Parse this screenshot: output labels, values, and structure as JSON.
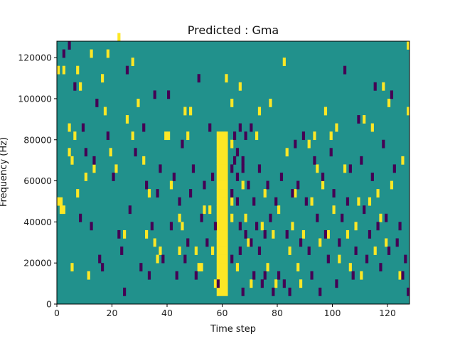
{
  "chart_data": {
    "type": "heatmap",
    "title": "Predicted : Gma",
    "xlabel": "Time step",
    "ylabel": "Frequency (Hz)",
    "xlim": [
      0,
      128
    ],
    "ylim": [
      0,
      128000
    ],
    "x_ticks": [
      0,
      20,
      40,
      60,
      80,
      100,
      120
    ],
    "x_tick_labels": [
      "0",
      "20",
      "40",
      "60",
      "80",
      "100",
      "120"
    ],
    "y_ticks": [
      0,
      20000,
      40000,
      60000,
      80000,
      100000,
      120000
    ],
    "y_tick_labels": [
      "0",
      "20000",
      "40000",
      "60000",
      "80000",
      "100000",
      "120000"
    ],
    "grid": false,
    "legend": "none",
    "colormap": "viridis",
    "value_levels": [
      -1,
      0,
      1
    ],
    "colors": {
      "low": "#440154",
      "mid": "#21918c",
      "high": "#fde725"
    },
    "background_value": 0,
    "cell_height_hz": 4000,
    "yellow_band": {
      "t_start": 58,
      "t_end": 62,
      "f_start": 4000,
      "f_end": 84000
    },
    "cells_high": [
      [
        0,
        48000
      ],
      [
        1,
        48000
      ],
      [
        1,
        44000
      ],
      [
        2,
        44000
      ],
      [
        0,
        112000
      ],
      [
        2,
        112000
      ],
      [
        4,
        84000
      ],
      [
        4,
        72000
      ],
      [
        5,
        68000
      ],
      [
        5,
        16000
      ],
      [
        6,
        80000
      ],
      [
        7,
        52000
      ],
      [
        7,
        112000
      ],
      [
        8,
        104000
      ],
      [
        10,
        60000
      ],
      [
        11,
        12000
      ],
      [
        12,
        120000
      ],
      [
        13,
        64000
      ],
      [
        16,
        108000
      ],
      [
        17,
        92000
      ],
      [
        18,
        120000
      ],
      [
        19,
        72000
      ],
      [
        21,
        64000
      ],
      [
        22,
        128000
      ],
      [
        24,
        32000
      ],
      [
        25,
        88000
      ],
      [
        27,
        80000
      ],
      [
        27,
        116000
      ],
      [
        29,
        96000
      ],
      [
        31,
        68000
      ],
      [
        32,
        32000
      ],
      [
        33,
        52000
      ],
      [
        35,
        28000
      ],
      [
        36,
        20000
      ],
      [
        37,
        24000
      ],
      [
        39,
        80000
      ],
      [
        40,
        80000
      ],
      [
        41,
        56000
      ],
      [
        44,
        24000
      ],
      [
        44,
        40000
      ],
      [
        45,
        36000
      ],
      [
        46,
        92000
      ],
      [
        47,
        80000
      ],
      [
        48,
        92000
      ],
      [
        50,
        24000
      ],
      [
        51,
        16000
      ],
      [
        52,
        16000
      ],
      [
        53,
        44000
      ],
      [
        55,
        44000
      ],
      [
        56,
        24000
      ],
      [
        57,
        8000
      ],
      [
        59,
        32000
      ],
      [
        59,
        48000
      ],
      [
        61,
        108000
      ],
      [
        63,
        96000
      ],
      [
        63,
        76000
      ],
      [
        63,
        48000
      ],
      [
        63,
        40000
      ],
      [
        65,
        16000
      ],
      [
        66,
        104000
      ],
      [
        67,
        56000
      ],
      [
        68,
        40000
      ],
      [
        69,
        28000
      ],
      [
        70,
        8000
      ],
      [
        72,
        80000
      ],
      [
        73,
        92000
      ],
      [
        74,
        36000
      ],
      [
        75,
        52000
      ],
      [
        76,
        16000
      ],
      [
        77,
        96000
      ],
      [
        78,
        32000
      ],
      [
        79,
        8000
      ],
      [
        80,
        44000
      ],
      [
        82,
        116000
      ],
      [
        83,
        72000
      ],
      [
        84,
        24000
      ],
      [
        85,
        36000
      ],
      [
        86,
        52000
      ],
      [
        87,
        16000
      ],
      [
        88,
        8000
      ],
      [
        89,
        32000
      ],
      [
        91,
        76000
      ],
      [
        92,
        48000
      ],
      [
        93,
        80000
      ],
      [
        94,
        64000
      ],
      [
        95,
        28000
      ],
      [
        96,
        56000
      ],
      [
        97,
        92000
      ],
      [
        98,
        32000
      ],
      [
        99,
        80000
      ],
      [
        100,
        44000
      ],
      [
        101,
        84000
      ],
      [
        102,
        20000
      ],
      [
        104,
        64000
      ],
      [
        105,
        32000
      ],
      [
        106,
        16000
      ],
      [
        108,
        36000
      ],
      [
        109,
        48000
      ],
      [
        110,
        12000
      ],
      [
        111,
        88000
      ],
      [
        113,
        48000
      ],
      [
        114,
        84000
      ],
      [
        115,
        24000
      ],
      [
        116,
        52000
      ],
      [
        117,
        40000
      ],
      [
        118,
        104000
      ],
      [
        119,
        28000
      ],
      [
        120,
        96000
      ],
      [
        121,
        56000
      ],
      [
        124,
        12000
      ],
      [
        125,
        68000
      ],
      [
        127,
        124000
      ],
      [
        127,
        92000
      ]
    ],
    "cells_low": [
      [
        2,
        120000
      ],
      [
        4,
        124000
      ],
      [
        6,
        104000
      ],
      [
        8,
        40000
      ],
      [
        9,
        84000
      ],
      [
        10,
        72000
      ],
      [
        12,
        36000
      ],
      [
        13,
        68000
      ],
      [
        14,
        96000
      ],
      [
        15,
        20000
      ],
      [
        16,
        16000
      ],
      [
        18,
        80000
      ],
      [
        20,
        60000
      ],
      [
        22,
        32000
      ],
      [
        23,
        24000
      ],
      [
        24,
        4000
      ],
      [
        25,
        112000
      ],
      [
        26,
        44000
      ],
      [
        28,
        72000
      ],
      [
        30,
        16000
      ],
      [
        31,
        84000
      ],
      [
        32,
        56000
      ],
      [
        33,
        12000
      ],
      [
        34,
        36000
      ],
      [
        35,
        100000
      ],
      [
        36,
        52000
      ],
      [
        37,
        64000
      ],
      [
        38,
        20000
      ],
      [
        40,
        100000
      ],
      [
        41,
        36000
      ],
      [
        42,
        60000
      ],
      [
        43,
        12000
      ],
      [
        44,
        48000
      ],
      [
        45,
        76000
      ],
      [
        46,
        20000
      ],
      [
        47,
        28000
      ],
      [
        48,
        52000
      ],
      [
        49,
        64000
      ],
      [
        50,
        12000
      ],
      [
        51,
        108000
      ],
      [
        52,
        40000
      ],
      [
        53,
        56000
      ],
      [
        54,
        28000
      ],
      [
        55,
        84000
      ],
      [
        56,
        60000
      ],
      [
        57,
        36000
      ],
      [
        58,
        8000
      ],
      [
        63,
        64000
      ],
      [
        63,
        52000
      ],
      [
        63,
        20000
      ],
      [
        64,
        80000
      ],
      [
        64,
        68000
      ],
      [
        65,
        72000
      ],
      [
        65,
        48000
      ],
      [
        65,
        60000
      ],
      [
        66,
        84000
      ],
      [
        66,
        36000
      ],
      [
        66,
        24000
      ],
      [
        67,
        64000
      ],
      [
        67,
        68000
      ],
      [
        67,
        4000
      ],
      [
        68,
        80000
      ],
      [
        68,
        32000
      ],
      [
        69,
        56000
      ],
      [
        70,
        84000
      ],
      [
        70,
        28000
      ],
      [
        71,
        48000
      ],
      [
        71,
        12000
      ],
      [
        72,
        36000
      ],
      [
        73,
        64000
      ],
      [
        73,
        24000
      ],
      [
        74,
        8000
      ],
      [
        75,
        12000
      ],
      [
        75,
        32000
      ],
      [
        76,
        56000
      ],
      [
        77,
        40000
      ],
      [
        78,
        4000
      ],
      [
        79,
        48000
      ],
      [
        80,
        12000
      ],
      [
        81,
        60000
      ],
      [
        82,
        8000
      ],
      [
        83,
        32000
      ],
      [
        84,
        4000
      ],
      [
        85,
        52000
      ],
      [
        86,
        76000
      ],
      [
        87,
        56000
      ],
      [
        88,
        28000
      ],
      [
        89,
        80000
      ],
      [
        90,
        48000
      ],
      [
        91,
        24000
      ],
      [
        92,
        12000
      ],
      [
        93,
        68000
      ],
      [
        94,
        40000
      ],
      [
        95,
        4000
      ],
      [
        96,
        60000
      ],
      [
        97,
        32000
      ],
      [
        98,
        20000
      ],
      [
        99,
        72000
      ],
      [
        100,
        52000
      ],
      [
        101,
        8000
      ],
      [
        102,
        28000
      ],
      [
        103,
        40000
      ],
      [
        104,
        112000
      ],
      [
        105,
        48000
      ],
      [
        106,
        64000
      ],
      [
        107,
        12000
      ],
      [
        108,
        24000
      ],
      [
        109,
        88000
      ],
      [
        110,
        68000
      ],
      [
        111,
        44000
      ],
      [
        112,
        20000
      ],
      [
        113,
        32000
      ],
      [
        114,
        60000
      ],
      [
        115,
        104000
      ],
      [
        116,
        36000
      ],
      [
        117,
        16000
      ],
      [
        118,
        76000
      ],
      [
        119,
        40000
      ],
      [
        120,
        24000
      ],
      [
        121,
        100000
      ],
      [
        122,
        64000
      ],
      [
        123,
        28000
      ],
      [
        124,
        36000
      ],
      [
        125,
        12000
      ],
      [
        126,
        20000
      ],
      [
        127,
        4000
      ]
    ]
  }
}
